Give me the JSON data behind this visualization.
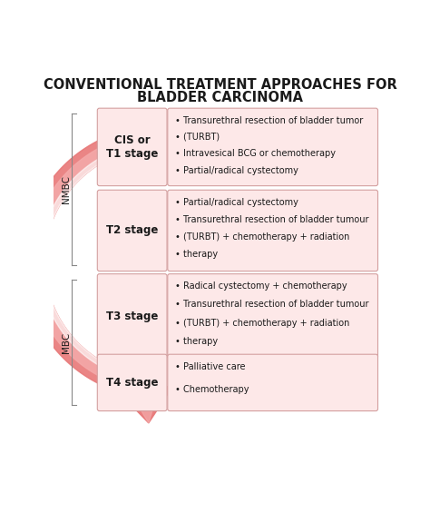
{
  "title_line1": "CONVENTIONAL TREATMENT APPROACHES FOR",
  "title_line2": "BLADDER CARCINOMA",
  "title_fontsize": 10.5,
  "background_color": "#ffffff",
  "stages": [
    {
      "label": "CIS or\nT1 stage",
      "treatments": "  Transurethral resection of bladder tumor\n  (TURBT)\n  Intravesical BCG or chemotherapy\n  Partial/radical cystectomy"
    },
    {
      "label": "T2 stage",
      "treatments": "  Partial/radical cystectomy\n  Transurethral resection of bladder tumour\n  (TURBT) + chemotherapy + radiation\n  therapy"
    },
    {
      "label": "T3 stage",
      "treatments": "  Radical cystectomy + chemotherapy\n  Transurethral resection of bladder tumour\n  (TURBT) + chemotherapy + radiation\n  therapy"
    },
    {
      "label": "T4 stage",
      "treatments": "  Palliative care\n  Chemotherapy"
    }
  ],
  "nmbc_label": "NMBC",
  "mbc_label": "MBC",
  "box_face_color": "#fde8e8",
  "box_edge_color": "#d4a0a0",
  "arrow_outer_color": "#e87878",
  "arrow_mid_color": "#f4aaaa",
  "arrow_white_color": "#ffffff",
  "text_color": "#1a1a1a",
  "bracket_color": "#888888"
}
